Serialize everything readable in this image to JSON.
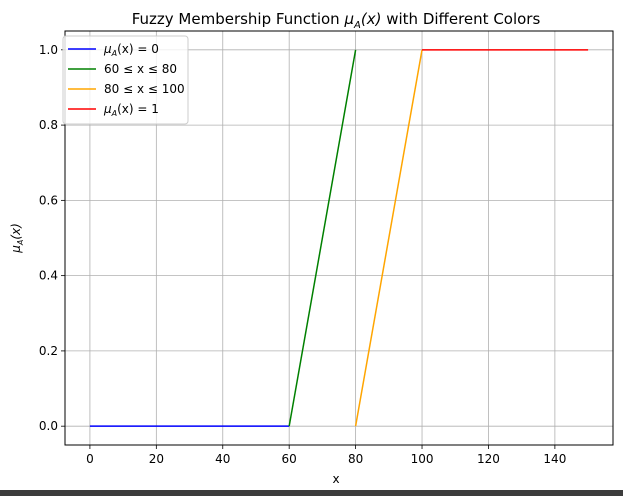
{
  "chart_data": {
    "type": "line",
    "title": "Fuzzy Membership Function μ_A(x) with Different Colors",
    "title_parts": {
      "prefix": "Fuzzy Membership Function ",
      "mu": "μ",
      "sub": "A",
      "arg": "(x)",
      "suffix": " with Different Colors"
    },
    "xlabel": "x",
    "ylabel": "μ_A(x)",
    "ylabel_parts": {
      "mu": "μ",
      "sub": "A",
      "arg": "(x)"
    },
    "xlim": [
      -7.5,
      157.5
    ],
    "ylim": [
      -0.05,
      1.05
    ],
    "xticks": [
      0,
      20,
      40,
      60,
      80,
      100,
      120,
      140
    ],
    "xtick_labels": [
      "0",
      "20",
      "40",
      "60",
      "80",
      "100",
      "120",
      "140"
    ],
    "yticks": [
      0.0,
      0.2,
      0.4,
      0.6,
      0.8,
      1.0
    ],
    "ytick_labels": [
      "0.0",
      "0.2",
      "0.4",
      "0.6",
      "0.8",
      "1.0"
    ],
    "grid": true,
    "legend_position": "upper-left",
    "series": [
      {
        "name": "μ_A(x) = 0",
        "legend_parts": {
          "mu": "μ",
          "sub": "A",
          "rest": "(x) = 0"
        },
        "color": "#0000ff",
        "points": [
          [
            0,
            0
          ],
          [
            60,
            0
          ]
        ]
      },
      {
        "name": "60 ≤ x ≤ 80",
        "legend_parts": {
          "text": "60 ≤ x ≤ 80"
        },
        "color": "#008000",
        "points": [
          [
            60,
            0
          ],
          [
            80,
            1
          ]
        ]
      },
      {
        "name": "80 ≤ x ≤ 100",
        "legend_parts": {
          "text": "80 ≤ x ≤ 100"
        },
        "color": "#ffa500",
        "points": [
          [
            80,
            0
          ],
          [
            100,
            1
          ]
        ]
      },
      {
        "name": "μ_A(x) = 1",
        "legend_parts": {
          "mu": "μ",
          "sub": "A",
          "rest": "(x) = 1"
        },
        "color": "#ff0000",
        "points": [
          [
            100,
            1
          ],
          [
            150,
            1
          ]
        ]
      }
    ]
  }
}
